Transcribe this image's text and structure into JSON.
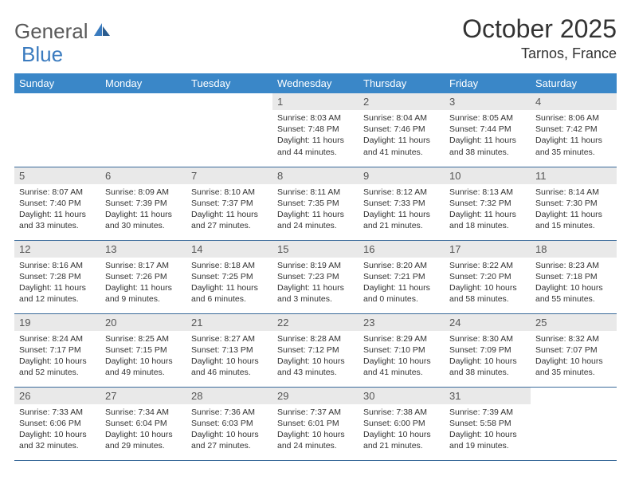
{
  "logo": {
    "text1": "General",
    "text2": "Blue"
  },
  "title": "October 2025",
  "location": "Tarnos, France",
  "colors": {
    "header_bg": "#3a87c8",
    "header_text": "#ffffff",
    "daynum_bg": "#e9e9e9",
    "daynum_text": "#555555",
    "rule": "#3a6a9a",
    "logo_gray": "#5a5a5a",
    "logo_blue": "#3a7bbf"
  },
  "day_headers": [
    "Sunday",
    "Monday",
    "Tuesday",
    "Wednesday",
    "Thursday",
    "Friday",
    "Saturday"
  ],
  "weeks": [
    [
      {
        "num": "",
        "lines": []
      },
      {
        "num": "",
        "lines": []
      },
      {
        "num": "",
        "lines": []
      },
      {
        "num": "1",
        "lines": [
          "Sunrise: 8:03 AM",
          "Sunset: 7:48 PM",
          "Daylight: 11 hours and 44 minutes."
        ]
      },
      {
        "num": "2",
        "lines": [
          "Sunrise: 8:04 AM",
          "Sunset: 7:46 PM",
          "Daylight: 11 hours and 41 minutes."
        ]
      },
      {
        "num": "3",
        "lines": [
          "Sunrise: 8:05 AM",
          "Sunset: 7:44 PM",
          "Daylight: 11 hours and 38 minutes."
        ]
      },
      {
        "num": "4",
        "lines": [
          "Sunrise: 8:06 AM",
          "Sunset: 7:42 PM",
          "Daylight: 11 hours and 35 minutes."
        ]
      }
    ],
    [
      {
        "num": "5",
        "lines": [
          "Sunrise: 8:07 AM",
          "Sunset: 7:40 PM",
          "Daylight: 11 hours and 33 minutes."
        ]
      },
      {
        "num": "6",
        "lines": [
          "Sunrise: 8:09 AM",
          "Sunset: 7:39 PM",
          "Daylight: 11 hours and 30 minutes."
        ]
      },
      {
        "num": "7",
        "lines": [
          "Sunrise: 8:10 AM",
          "Sunset: 7:37 PM",
          "Daylight: 11 hours and 27 minutes."
        ]
      },
      {
        "num": "8",
        "lines": [
          "Sunrise: 8:11 AM",
          "Sunset: 7:35 PM",
          "Daylight: 11 hours and 24 minutes."
        ]
      },
      {
        "num": "9",
        "lines": [
          "Sunrise: 8:12 AM",
          "Sunset: 7:33 PM",
          "Daylight: 11 hours and 21 minutes."
        ]
      },
      {
        "num": "10",
        "lines": [
          "Sunrise: 8:13 AM",
          "Sunset: 7:32 PM",
          "Daylight: 11 hours and 18 minutes."
        ]
      },
      {
        "num": "11",
        "lines": [
          "Sunrise: 8:14 AM",
          "Sunset: 7:30 PM",
          "Daylight: 11 hours and 15 minutes."
        ]
      }
    ],
    [
      {
        "num": "12",
        "lines": [
          "Sunrise: 8:16 AM",
          "Sunset: 7:28 PM",
          "Daylight: 11 hours and 12 minutes."
        ]
      },
      {
        "num": "13",
        "lines": [
          "Sunrise: 8:17 AM",
          "Sunset: 7:26 PM",
          "Daylight: 11 hours and 9 minutes."
        ]
      },
      {
        "num": "14",
        "lines": [
          "Sunrise: 8:18 AM",
          "Sunset: 7:25 PM",
          "Daylight: 11 hours and 6 minutes."
        ]
      },
      {
        "num": "15",
        "lines": [
          "Sunrise: 8:19 AM",
          "Sunset: 7:23 PM",
          "Daylight: 11 hours and 3 minutes."
        ]
      },
      {
        "num": "16",
        "lines": [
          "Sunrise: 8:20 AM",
          "Sunset: 7:21 PM",
          "Daylight: 11 hours and 0 minutes."
        ]
      },
      {
        "num": "17",
        "lines": [
          "Sunrise: 8:22 AM",
          "Sunset: 7:20 PM",
          "Daylight: 10 hours and 58 minutes."
        ]
      },
      {
        "num": "18",
        "lines": [
          "Sunrise: 8:23 AM",
          "Sunset: 7:18 PM",
          "Daylight: 10 hours and 55 minutes."
        ]
      }
    ],
    [
      {
        "num": "19",
        "lines": [
          "Sunrise: 8:24 AM",
          "Sunset: 7:17 PM",
          "Daylight: 10 hours and 52 minutes."
        ]
      },
      {
        "num": "20",
        "lines": [
          "Sunrise: 8:25 AM",
          "Sunset: 7:15 PM",
          "Daylight: 10 hours and 49 minutes."
        ]
      },
      {
        "num": "21",
        "lines": [
          "Sunrise: 8:27 AM",
          "Sunset: 7:13 PM",
          "Daylight: 10 hours and 46 minutes."
        ]
      },
      {
        "num": "22",
        "lines": [
          "Sunrise: 8:28 AM",
          "Sunset: 7:12 PM",
          "Daylight: 10 hours and 43 minutes."
        ]
      },
      {
        "num": "23",
        "lines": [
          "Sunrise: 8:29 AM",
          "Sunset: 7:10 PM",
          "Daylight: 10 hours and 41 minutes."
        ]
      },
      {
        "num": "24",
        "lines": [
          "Sunrise: 8:30 AM",
          "Sunset: 7:09 PM",
          "Daylight: 10 hours and 38 minutes."
        ]
      },
      {
        "num": "25",
        "lines": [
          "Sunrise: 8:32 AM",
          "Sunset: 7:07 PM",
          "Daylight: 10 hours and 35 minutes."
        ]
      }
    ],
    [
      {
        "num": "26",
        "lines": [
          "Sunrise: 7:33 AM",
          "Sunset: 6:06 PM",
          "Daylight: 10 hours and 32 minutes."
        ]
      },
      {
        "num": "27",
        "lines": [
          "Sunrise: 7:34 AM",
          "Sunset: 6:04 PM",
          "Daylight: 10 hours and 29 minutes."
        ]
      },
      {
        "num": "28",
        "lines": [
          "Sunrise: 7:36 AM",
          "Sunset: 6:03 PM",
          "Daylight: 10 hours and 27 minutes."
        ]
      },
      {
        "num": "29",
        "lines": [
          "Sunrise: 7:37 AM",
          "Sunset: 6:01 PM",
          "Daylight: 10 hours and 24 minutes."
        ]
      },
      {
        "num": "30",
        "lines": [
          "Sunrise: 7:38 AM",
          "Sunset: 6:00 PM",
          "Daylight: 10 hours and 21 minutes."
        ]
      },
      {
        "num": "31",
        "lines": [
          "Sunrise: 7:39 AM",
          "Sunset: 5:58 PM",
          "Daylight: 10 hours and 19 minutes."
        ]
      },
      {
        "num": "",
        "lines": []
      }
    ]
  ]
}
